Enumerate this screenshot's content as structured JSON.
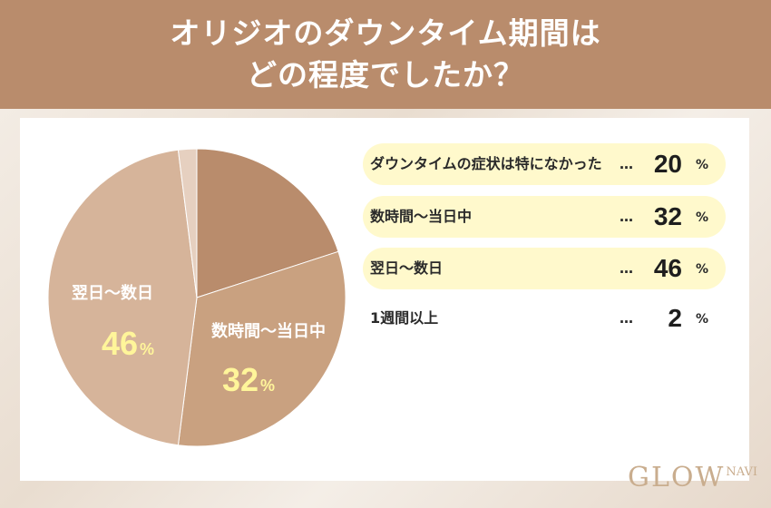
{
  "header": {
    "title_line1": "オリジオのダウンタイム期間は",
    "title_line2": "どの程度でしたか？"
  },
  "chart_data": {
    "type": "pie",
    "title": "オリジオのダウンタイム期間はどの程度でしたか？",
    "unit": "%",
    "slices": [
      {
        "label": "ダウンタイムの症状は特になかった",
        "value": 20,
        "color": "#b98c6c"
      },
      {
        "label": "数時間〜当日中",
        "value": 32,
        "color": "#c9a180"
      },
      {
        "label": "翌日〜数日",
        "value": 46,
        "color": "#d6b49a"
      },
      {
        "label": "1週間以上",
        "value": 2,
        "color": "#e6d0c0"
      }
    ],
    "slice_labels": [
      {
        "label": "数時間〜当日中",
        "value": "32",
        "unit": "%"
      },
      {
        "label": "翌日〜数日",
        "value": "46",
        "unit": "%"
      }
    ]
  },
  "legend": {
    "rows": [
      {
        "label": "ダウンタイムの症状は特になかった",
        "dots": "…",
        "value": "20",
        "unit": "%",
        "highlight": true
      },
      {
        "label": "数時間〜当日中",
        "dots": "…",
        "value": "32",
        "unit": "%",
        "highlight": true
      },
      {
        "label": "翌日〜数日",
        "dots": "…",
        "value": "46",
        "unit": "%",
        "highlight": true
      },
      {
        "label": "1週間以上",
        "dots": "…",
        "value": "2",
        "unit": "%",
        "highlight": false
      }
    ]
  },
  "brand": {
    "main": "GLOW",
    "sub": "NAVI"
  }
}
